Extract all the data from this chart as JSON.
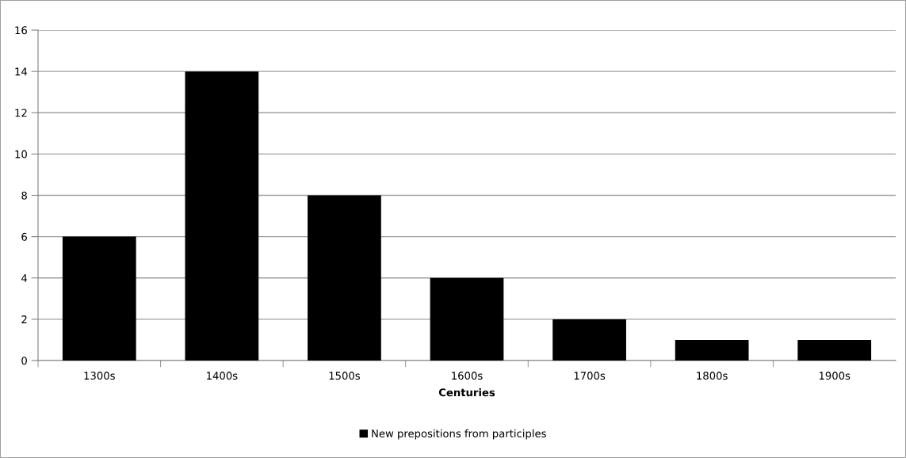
{
  "chart_data": {
    "type": "bar",
    "xlabel": "Centuries",
    "categories": [
      "1300s",
      "1400s",
      "1500s",
      "1600s",
      "1700s",
      "1800s",
      "1900s"
    ],
    "series": [
      {
        "name": "New prepositions from participles",
        "color": "#000000",
        "values": [
          6,
          14,
          8,
          4,
          2,
          1,
          1
        ]
      }
    ],
    "ylim": [
      0,
      16
    ],
    "yticks": [
      0,
      2,
      4,
      6,
      8,
      10,
      12,
      14,
      16
    ],
    "grid": "y",
    "legend": "bottom"
  }
}
